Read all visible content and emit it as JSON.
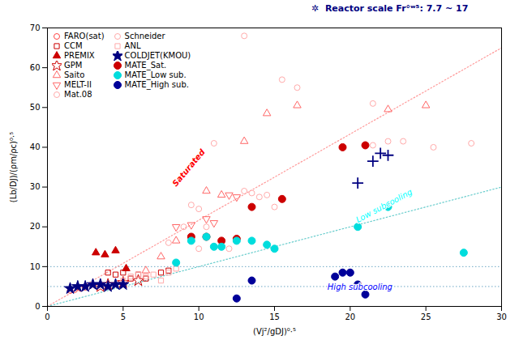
{
  "chart_data": {
    "type": "scatter",
    "x_label": "(Vj²/gDJ)⁰·⁵",
    "y_label": "(Lb/DJ)/(ρm/ρc)⁰·⁵",
    "xlim": [
      0,
      30
    ],
    "ylim": [
      0,
      70
    ],
    "xticks": [
      0,
      5,
      10,
      15,
      20,
      25,
      30
    ],
    "yticks": [
      0,
      10,
      20,
      30,
      40,
      50,
      60,
      70
    ],
    "grid": false,
    "legend": "upper left",
    "hlines": {
      "values": [
        10.0,
        5.0
      ],
      "color": "#5599BB",
      "line_style": "dotted"
    },
    "lines": [
      {
        "x": [
          0,
          30
        ],
        "y": [
          0,
          65
        ],
        "color": "#FF9999",
        "line_style": "dotted"
      },
      {
        "x": [
          0,
          30
        ],
        "y": [
          0,
          30
        ],
        "color": "#66CCCC",
        "line_style": "dotted"
      }
    ],
    "series": [
      {
        "name": "FARO(sat)",
        "color": "#FF4444",
        "marker": "circle-open",
        "x": [
          1.5,
          1.8,
          2.2,
          2.5,
          3.2
        ],
        "values": [
          4.0,
          4.2,
          4.5,
          4.8,
          5.2
        ]
      },
      {
        "name": "CCM",
        "color": "#CC0000",
        "marker": "square-open",
        "x": [
          4.0,
          4.5,
          5.0,
          5.5,
          6.0,
          6.5,
          7.5,
          8.0
        ],
        "values": [
          8.5,
          8.0,
          8.5,
          7.0,
          8.0,
          7.0,
          8.5,
          9.0
        ]
      },
      {
        "name": "PREMIX",
        "color": "#CC0000",
        "marker": "triangle",
        "x": [
          3.2,
          3.8,
          4.5,
          5.2
        ],
        "values": [
          13.5,
          13.0,
          14.0,
          9.5
        ]
      },
      {
        "name": "GPM",
        "color": "#CC0000",
        "marker": "star-open",
        "x": [
          3.5,
          4.0,
          5.0,
          6.0
        ],
        "values": [
          5.0,
          5.5,
          6.0,
          6.5
        ]
      },
      {
        "name": "Saito",
        "color": "#FF6666",
        "marker": "triangle-open",
        "x": [
          6.5,
          7.5,
          8.5,
          10.5,
          11.5,
          13.0,
          14.5,
          16.5,
          22.5,
          25.0
        ],
        "values": [
          9.0,
          12.5,
          16.5,
          29.0,
          28.0,
          41.5,
          48.5,
          50.5,
          49.5,
          50.5
        ]
      },
      {
        "name": "MELT-II",
        "color": "#FF6666",
        "marker": "triangle-down-open",
        "x": [
          8.5,
          9.5,
          10.5,
          11.0,
          12.0,
          12.5
        ],
        "values": [
          20.0,
          20.5,
          22.0,
          21.0,
          28.0,
          27.5
        ]
      },
      {
        "name": "Mat.08",
        "color": "#FFAAAA",
        "marker": "circle-open",
        "x": [
          10.0,
          11.0,
          12.0,
          13.0,
          15.5,
          16.5,
          21.5,
          23.5,
          25.5,
          28.0
        ],
        "values": [
          14.5,
          41.0,
          14.5,
          68.0,
          57.0,
          55.0,
          51.0,
          41.5,
          40.0,
          41.0
        ]
      },
      {
        "name": "Schneider",
        "color": "#FFAAAA",
        "marker": "circle-open",
        "x": [
          8.0,
          9.0,
          9.5,
          10.0,
          10.5,
          13.0,
          13.5,
          14.0,
          14.5,
          15.0,
          21.5,
          22.5
        ],
        "values": [
          16.0,
          20.0,
          25.5,
          24.5,
          20.0,
          29.0,
          28.5,
          27.5,
          28.0,
          25.0,
          40.5,
          41.5
        ]
      },
      {
        "name": "ANL",
        "color": "#FFAAAA",
        "marker": "square-open",
        "x": [
          5.0,
          5.5,
          6.0,
          6.5,
          7.0,
          7.5,
          8.0,
          8.5
        ],
        "values": [
          6.5,
          7.5,
          8.0,
          7.5,
          8.0,
          6.5,
          8.5,
          9.5
        ]
      },
      {
        "name": "COLDJET(KMOU)",
        "color": "#000080",
        "marker": "star",
        "x": [
          1.5,
          2.0,
          2.5,
          3.0,
          3.5,
          4.0,
          4.5,
          5.0
        ],
        "values": [
          4.5,
          5.0,
          5.0,
          5.5,
          5.5,
          5.0,
          5.5,
          5.5
        ]
      },
      {
        "name": "MATE_Sat.",
        "color": "#CC0000",
        "marker": "circle",
        "x": [
          9.5,
          10.5,
          11.5,
          12.5,
          13.5,
          15.5,
          19.5,
          21.0
        ],
        "values": [
          17.5,
          17.5,
          16.5,
          17.0,
          25.0,
          27.0,
          40.0,
          40.5
        ]
      },
      {
        "name": "MATE_Low sub.",
        "color": "#00DDDD",
        "marker": "circle",
        "x": [
          8.5,
          9.5,
          10.5,
          11.0,
          11.5,
          12.5,
          13.5,
          14.5,
          15.0,
          20.5,
          22.5,
          27.5
        ],
        "values": [
          11.0,
          16.5,
          17.5,
          15.0,
          15.0,
          16.5,
          16.5,
          15.5,
          14.5,
          20.0,
          25.0,
          13.5
        ]
      },
      {
        "name": "MATE_High sub.",
        "color": "#000099",
        "marker": "circle",
        "x": [
          12.5,
          13.5,
          19.0,
          19.5,
          20.0,
          20.5,
          21.0
        ],
        "values": [
          2.0,
          6.5,
          7.5,
          8.5,
          8.5,
          5.5,
          3.0
        ]
      }
    ],
    "reactor_scale": {
      "color": "#000080",
      "marker": "plus",
      "x": [
        20.5,
        21.5,
        22.0,
        22.5
      ],
      "values": [
        31.0,
        36.5,
        38.5,
        38.0
      ]
    },
    "annotations": [
      {
        "text": "Saturated",
        "x": 8.5,
        "y": 30,
        "color": "red"
      },
      {
        "text": "Low subcooling",
        "x": 20.5,
        "y": 21,
        "color": "cyan"
      },
      {
        "text": "High subcooling",
        "x": 18.5,
        "y": 4.2,
        "color": "blue"
      }
    ],
    "note": {
      "text": "✲  Reactor scale Fr°ʷ⁵: 7.7 ~ 17",
      "color": "#000080"
    }
  }
}
